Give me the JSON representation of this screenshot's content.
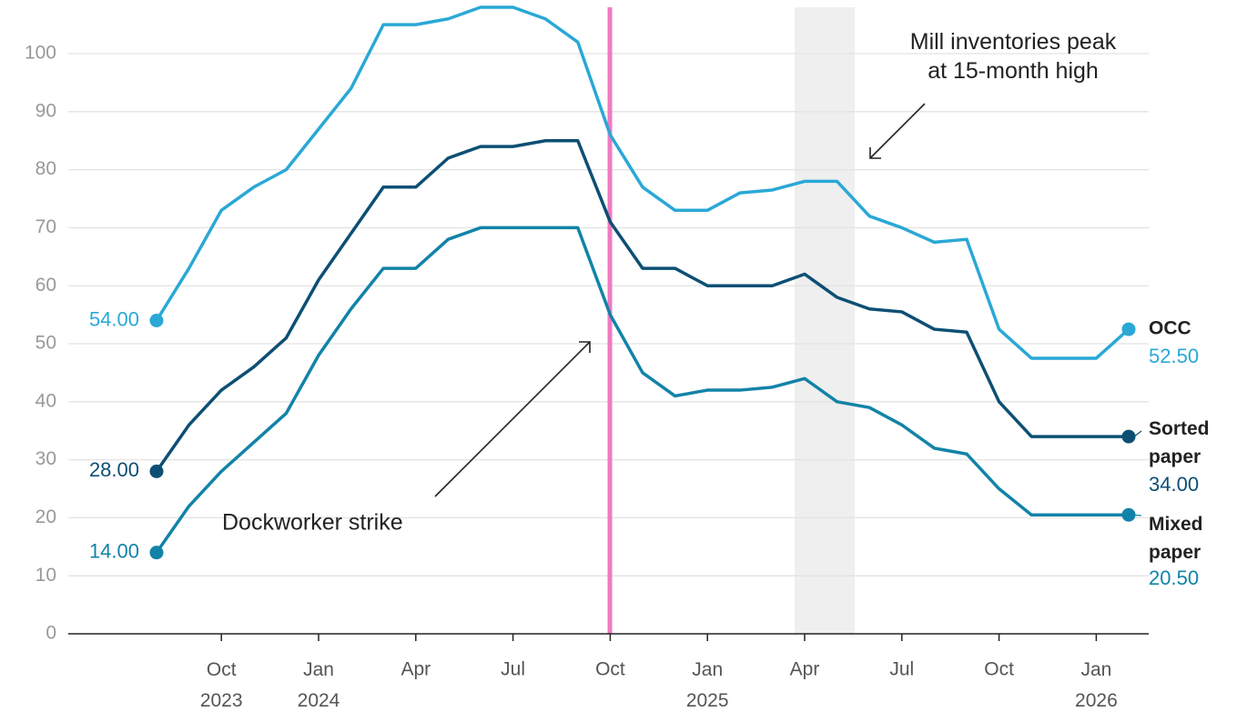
{
  "chart_data": {
    "type": "line",
    "categories": [
      null,
      null,
      "Oct\n2023",
      null,
      null,
      "Jan\n2024",
      null,
      null,
      "Apr",
      null,
      null,
      "Jul",
      null,
      null,
      "Oct",
      null,
      null,
      "Jan\n2025",
      null,
      null,
      "Apr",
      null,
      null,
      "Jul",
      null,
      null,
      "Oct",
      null,
      null,
      "Jan\n2026",
      null
    ],
    "series": [
      {
        "name": "OCC",
        "color": "#2aa8d6",
        "values": [
          54,
          63,
          73,
          77,
          80,
          87,
          94,
          105,
          105,
          106,
          108,
          108,
          106,
          102,
          86,
          77,
          73,
          73,
          76,
          76.5,
          78,
          78,
          72,
          70,
          67.5,
          68,
          52.5,
          47.5,
          47.5,
          47.5,
          52.5
        ],
        "value_labels": [
          "54.00",
          null,
          null,
          null,
          null,
          null,
          null,
          null,
          null,
          null,
          null,
          null,
          null,
          null,
          null,
          null,
          null,
          null,
          null,
          null,
          null,
          null,
          null,
          null,
          null,
          null,
          null,
          null,
          null,
          null,
          "52.50"
        ]
      },
      {
        "name": "Sorted\npaper",
        "color": "#0d4f74",
        "values": [
          28,
          36,
          42,
          46,
          51,
          61,
          69,
          77,
          77,
          82,
          84,
          84,
          85,
          85,
          71,
          63,
          63,
          60,
          60,
          60,
          62,
          58,
          56,
          55.5,
          52.5,
          52,
          40,
          34,
          34,
          34,
          34
        ],
        "value_labels": [
          "28.00",
          null,
          null,
          null,
          null,
          null,
          null,
          null,
          null,
          null,
          null,
          null,
          null,
          null,
          null,
          null,
          null,
          null,
          null,
          null,
          null,
          null,
          null,
          null,
          null,
          null,
          null,
          null,
          null,
          null,
          "34.00"
        ]
      },
      {
        "name": "Mixed\npaper",
        "color": "#1283a8",
        "values": [
          14,
          22,
          28,
          33,
          38,
          48,
          56,
          63,
          63,
          68,
          70,
          70,
          70,
          70,
          55,
          45,
          41,
          42,
          42,
          42.5,
          44,
          40,
          39,
          36,
          32,
          31,
          25,
          20.5,
          20.5,
          20.5,
          20.5
        ],
        "value_labels": [
          "14.00",
          null,
          null,
          null,
          null,
          null,
          null,
          null,
          null,
          null,
          null,
          null,
          null,
          null,
          null,
          null,
          null,
          null,
          null,
          null,
          null,
          null,
          null,
          null,
          null,
          null,
          null,
          null,
          null,
          null,
          "20.50"
        ]
      }
    ],
    "ylim": [
      0,
      108
    ],
    "yticks": [
      0,
      10,
      20,
      30,
      40,
      50,
      60,
      70,
      80,
      90,
      100
    ],
    "grid": true,
    "annotations": [
      "Mill inventories peak\nat 15-month high",
      "Dockworker strike"
    ]
  }
}
